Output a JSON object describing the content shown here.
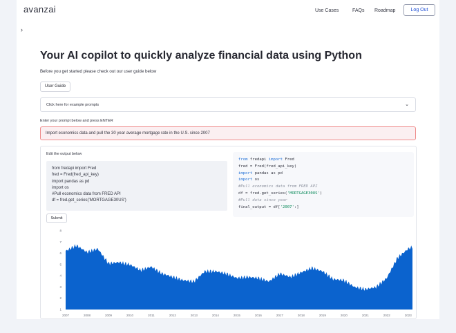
{
  "brand": "avanzai",
  "nav": {
    "use_cases": "Use Cases",
    "faqs": "FAQs",
    "roadmap": "Roadmap",
    "logout": "Log Out"
  },
  "sidebar_toggle_icon": "chevron-right-icon",
  "main": {
    "title": "Your AI copilot to quickly analyze financial data using Python",
    "intro": "Before you get started please check out our user guide below",
    "user_guide_button": "User Guide",
    "expander_label": "Click here for example prompts",
    "prompt_label": "Enter your prompt below and press ENTER",
    "prompt_value": "Import economics data and pull the 30 year average mortgage rate in the U.S. since 2007"
  },
  "output": {
    "edit_label": "Edit the output below",
    "editable_code": [
      "from fredapi import Fred",
      "fred = Fred(fred_api_key)",
      "import pandas as pd",
      "import os",
      "#Pull economics data from FRED API",
      "df = fred.get_series('MORTGAGE30US')"
    ],
    "code_view": [
      {
        "parts": [
          {
            "t": "from",
            "c": "kw"
          },
          {
            "t": " fredapi ",
            "c": ""
          },
          {
            "t": "import",
            "c": "kw"
          },
          {
            "t": " Fred",
            "c": ""
          }
        ]
      },
      {
        "parts": [
          {
            "t": "fred = Fred(fred_api_key)",
            "c": ""
          }
        ]
      },
      {
        "parts": [
          {
            "t": "import",
            "c": "kw"
          },
          {
            "t": " pandas as pd",
            "c": ""
          }
        ]
      },
      {
        "parts": [
          {
            "t": "import",
            "c": "kw"
          },
          {
            "t": " os",
            "c": ""
          }
        ]
      },
      {
        "parts": [
          {
            "t": "#Pull economics data from FRED API",
            "c": "cmt"
          }
        ]
      },
      {
        "parts": [
          {
            "t": "df = fred.get_series(",
            "c": ""
          },
          {
            "t": "'MORTGAGE30US'",
            "c": "str"
          },
          {
            "t": ")",
            "c": ""
          }
        ]
      },
      {
        "parts": [
          {
            "t": "#Pull data since year",
            "c": "cmt"
          }
        ]
      },
      {
        "parts": [
          {
            "t": "final_output = df[",
            "c": ""
          },
          {
            "t": "'2007'",
            "c": "str"
          },
          {
            "t": ":]",
            "c": ""
          }
        ]
      }
    ],
    "submit_button": "Submit"
  },
  "colors": {
    "accent": "#1f4fd6",
    "area_fill": "#0b63ce",
    "prompt_border": "#ef8a8a",
    "prompt_bg": "#fbeff1"
  },
  "chart_data": {
    "type": "area",
    "title": "",
    "xlabel": "",
    "ylabel": "",
    "x": [
      2007,
      2007.5,
      2008,
      2008.5,
      2009,
      2009.5,
      2010,
      2010.5,
      2011,
      2011.5,
      2012,
      2012.5,
      2013,
      2013.5,
      2014,
      2014.5,
      2015,
      2015.5,
      2016,
      2016.5,
      2017,
      2017.5,
      2018,
      2018.5,
      2019,
      2019.5,
      2020,
      2020.5,
      2021,
      2021.5,
      2022,
      2022.5,
      2023,
      2023.5
    ],
    "values": [
      6.2,
      6.7,
      6.1,
      6.4,
      5.1,
      5.2,
      5.0,
      4.5,
      4.8,
      4.2,
      3.9,
      3.6,
      3.5,
      4.4,
      4.4,
      4.2,
      3.8,
      3.9,
      3.8,
      3.5,
      4.2,
      3.9,
      4.3,
      4.7,
      4.4,
      3.7,
      3.6,
      3.0,
      2.8,
      3.0,
      3.8,
      5.6,
      6.4,
      6.8
    ],
    "ylim": [
      1,
      8
    ],
    "y_ticks": [
      1,
      2,
      3,
      4,
      5,
      6,
      7,
      8
    ],
    "x_ticks": [
      "2007",
      "2008",
      "2009",
      "2010",
      "2011",
      "2012",
      "2013",
      "2014",
      "2015",
      "2016",
      "2017",
      "2018",
      "2019",
      "2020",
      "2021",
      "2022",
      "2023"
    ],
    "grid": false,
    "legend": "none"
  }
}
